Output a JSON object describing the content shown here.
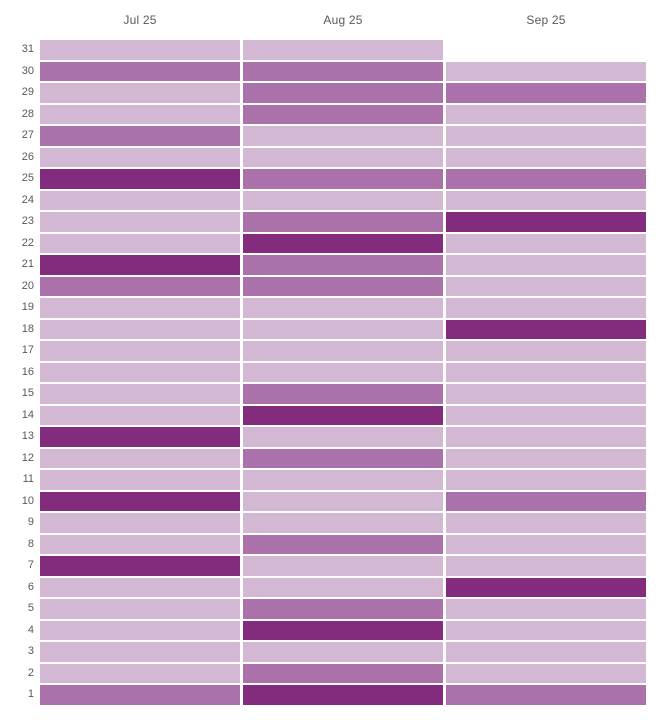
{
  "chart_data": {
    "type": "heatmap",
    "title": "",
    "columns": [
      "Jul 25",
      "Aug 25",
      "Sep 25"
    ],
    "row_axis": "day of month, 31 at top to 1 at bottom",
    "intensity_levels": {
      "1": "light",
      "2": "medium",
      "3": "dark"
    },
    "colors": {
      "light": "#d3b8d4",
      "medium": "#aa71ab",
      "dark": "#832c7e",
      "background": "#ffffff",
      "text": "#595959"
    },
    "grid_rows_top_to_bottom": [
      {
        "day": 31,
        "values": [
          1,
          1,
          null
        ]
      },
      {
        "day": 30,
        "values": [
          2,
          2,
          1
        ]
      },
      {
        "day": 29,
        "values": [
          1,
          2,
          2
        ]
      },
      {
        "day": 28,
        "values": [
          1,
          2,
          1
        ]
      },
      {
        "day": 27,
        "values": [
          2,
          1,
          1
        ]
      },
      {
        "day": 26,
        "values": [
          1,
          1,
          1
        ]
      },
      {
        "day": 25,
        "values": [
          3,
          2,
          2
        ]
      },
      {
        "day": 24,
        "values": [
          1,
          1,
          1
        ]
      },
      {
        "day": 23,
        "values": [
          1,
          2,
          3
        ]
      },
      {
        "day": 22,
        "values": [
          1,
          3,
          1
        ]
      },
      {
        "day": 21,
        "values": [
          3,
          2,
          1
        ]
      },
      {
        "day": 20,
        "values": [
          2,
          2,
          1
        ]
      },
      {
        "day": 19,
        "values": [
          1,
          1,
          1
        ]
      },
      {
        "day": 18,
        "values": [
          1,
          1,
          3
        ]
      },
      {
        "day": 17,
        "values": [
          1,
          1,
          1
        ]
      },
      {
        "day": 16,
        "values": [
          1,
          1,
          1
        ]
      },
      {
        "day": 15,
        "values": [
          1,
          2,
          1
        ]
      },
      {
        "day": 14,
        "values": [
          1,
          3,
          1
        ]
      },
      {
        "day": 13,
        "values": [
          3,
          1,
          1
        ]
      },
      {
        "day": 12,
        "values": [
          1,
          2,
          1
        ]
      },
      {
        "day": 11,
        "values": [
          1,
          1,
          1
        ]
      },
      {
        "day": 10,
        "values": [
          3,
          1,
          2
        ]
      },
      {
        "day": 9,
        "values": [
          1,
          1,
          1
        ]
      },
      {
        "day": 8,
        "values": [
          1,
          2,
          1
        ]
      },
      {
        "day": 7,
        "values": [
          3,
          1,
          1
        ]
      },
      {
        "day": 6,
        "values": [
          1,
          1,
          3
        ]
      },
      {
        "day": 5,
        "values": [
          1,
          2,
          1
        ]
      },
      {
        "day": 4,
        "values": [
          1,
          3,
          1
        ]
      },
      {
        "day": 3,
        "values": [
          1,
          1,
          1
        ]
      },
      {
        "day": 2,
        "values": [
          1,
          2,
          1
        ]
      },
      {
        "day": 1,
        "values": [
          2,
          3,
          2
        ]
      }
    ]
  }
}
